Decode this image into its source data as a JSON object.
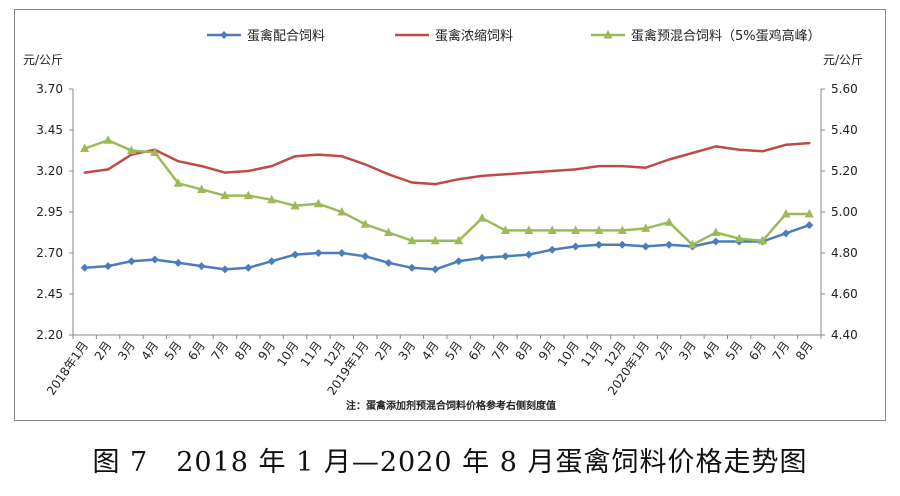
{
  "caption": "图 7　2018 年 1 月—2020 年 8 月蛋禽饲料价格走势图",
  "chart_data": {
    "type": "line",
    "x": [
      "2018年1月",
      "2月",
      "3月",
      "4月",
      "5月",
      "6月",
      "7月",
      "8月",
      "9月",
      "10月",
      "11月",
      "12月",
      "2019年1月",
      "2月",
      "3月",
      "4月",
      "5月",
      "6月",
      "7月",
      "8月",
      "9月",
      "10月",
      "11月",
      "12月",
      "2020年1月",
      "2月",
      "3月",
      "4月",
      "5月",
      "6月",
      "7月",
      "8月"
    ],
    "left_axis": {
      "label": "元/公斤",
      "ylim": [
        2.2,
        3.7
      ],
      "ticks": [
        "2.20",
        "2.45",
        "2.70",
        "2.95",
        "3.20",
        "3.45",
        "3.70"
      ]
    },
    "right_axis": {
      "label": "元/公斤",
      "ylim": [
        4.4,
        5.6
      ],
      "ticks": [
        "4.40",
        "4.60",
        "4.80",
        "5.00",
        "5.20",
        "5.40",
        "5.60"
      ]
    },
    "series": [
      {
        "name": "蛋禽配合饲料",
        "axis": "left",
        "color": "#4a7ebb",
        "marker": "diamond",
        "values": [
          2.61,
          2.62,
          2.65,
          2.66,
          2.64,
          2.62,
          2.6,
          2.61,
          2.65,
          2.69,
          2.7,
          2.7,
          2.68,
          2.64,
          2.61,
          2.6,
          2.65,
          2.67,
          2.68,
          2.69,
          2.72,
          2.74,
          2.75,
          2.75,
          2.74,
          2.75,
          2.74,
          2.77,
          2.77,
          2.77,
          2.82,
          2.87
        ]
      },
      {
        "name": "蛋禽浓缩饲料",
        "axis": "left",
        "color": "#be4b48",
        "marker": "line",
        "values": [
          3.19,
          3.21,
          3.3,
          3.33,
          3.26,
          3.23,
          3.19,
          3.2,
          3.23,
          3.29,
          3.3,
          3.29,
          3.24,
          3.18,
          3.13,
          3.12,
          3.15,
          3.17,
          3.18,
          3.19,
          3.2,
          3.21,
          3.23,
          3.23,
          3.22,
          3.27,
          3.31,
          3.35,
          3.33,
          3.32,
          3.36,
          3.37
        ]
      },
      {
        "name": "蛋禽预混合饲料（5%蛋鸡高峰）",
        "axis": "right",
        "color": "#9bbb59",
        "marker": "triangle",
        "values": [
          5.31,
          5.35,
          5.3,
          5.29,
          5.14,
          5.11,
          5.08,
          5.08,
          5.06,
          5.03,
          5.04,
          5.0,
          4.94,
          4.9,
          4.86,
          4.86,
          4.86,
          4.97,
          4.91,
          4.91,
          4.91,
          4.91,
          4.91,
          4.91,
          4.92,
          4.95,
          4.84,
          4.9,
          4.87,
          4.86,
          4.99,
          4.99
        ]
      }
    ],
    "note": "注：蛋禽添加剂预混合饲料价格参考右侧刻度值",
    "grid": false,
    "legend": "top"
  }
}
